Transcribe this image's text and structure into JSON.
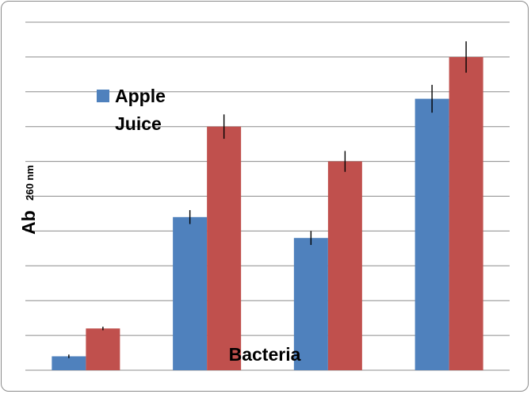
{
  "chart_data": {
    "type": "bar",
    "categories": [
      "",
      "",
      "",
      ""
    ],
    "series": [
      {
        "name": "Apple Juice",
        "color": "#4f81bd",
        "values": [
          0.4,
          4.4,
          3.8,
          7.8
        ],
        "errors": [
          0.05,
          0.2,
          0.2,
          0.4
        ]
      },
      {
        "name": "",
        "color": "#c0504d",
        "values": [
          1.2,
          7.0,
          6.0,
          9.0
        ],
        "errors": [
          0.05,
          0.35,
          0.3,
          0.45
        ]
      }
    ],
    "xlabel": "Bacteria",
    "ylabel": "Ab",
    "ylabel_sub": "260 nm",
    "ylim": [
      0,
      10
    ],
    "grid": true,
    "legend": "upper-left"
  }
}
